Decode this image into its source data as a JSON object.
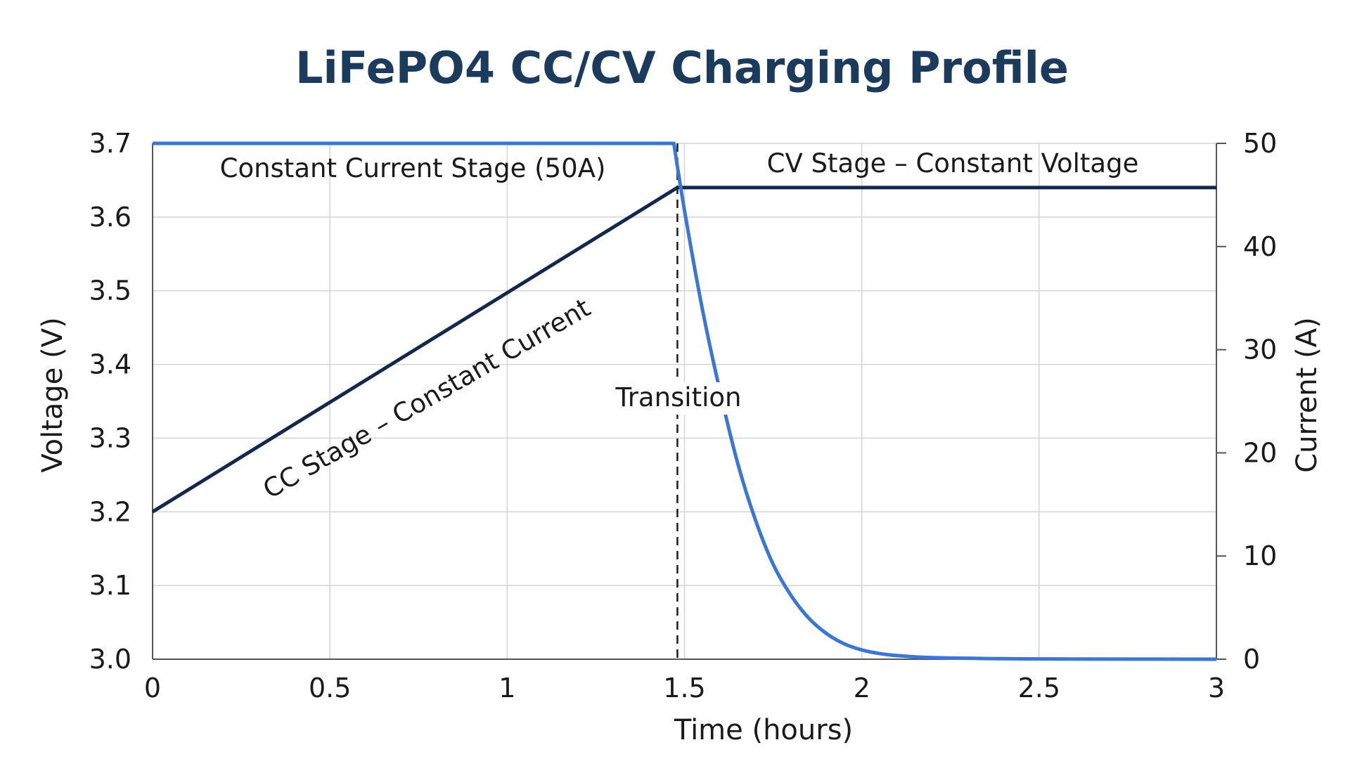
{
  "chart_data": {
    "type": "line",
    "title": "LiFePO4 CC/CV Charging Profile",
    "xlabel": "Time (hours)",
    "ylabel_left": "Voltage (V)",
    "ylabel_right": "Current (A)",
    "xlim": [
      0,
      3
    ],
    "ylim_left": [
      3.0,
      3.7
    ],
    "ylim_right": [
      0,
      50
    ],
    "x_ticks": [
      0,
      0.5,
      1,
      1.5,
      2,
      2.5,
      3
    ],
    "x_tick_labels": [
      "0",
      "0.5",
      "1",
      "1.5",
      "2",
      "2.5",
      "3"
    ],
    "y_left_ticks": [
      3.0,
      3.1,
      3.2,
      3.3,
      3.4,
      3.5,
      3.6,
      3.7
    ],
    "y_left_tick_labels": [
      "3.0",
      "3.1",
      "3.2",
      "3.3",
      "3.4",
      "3.5",
      "3.6",
      "3.7"
    ],
    "y_right_ticks": [
      0,
      10,
      20,
      30,
      40,
      50
    ],
    "y_right_tick_labels": [
      "0",
      "10",
      "20",
      "30",
      "40",
      "50"
    ],
    "grid": true,
    "colors": {
      "voltage": "#14284b",
      "current": "#3b76d4",
      "title": "#1b3a5c",
      "grid": "#d4d4d4"
    },
    "series": [
      {
        "axis": "left",
        "x": [
          0,
          1.48,
          1.5,
          3.0
        ],
        "y": [
          3.2,
          3.64,
          3.64,
          3.64
        ]
      },
      {
        "axis": "right",
        "x": [
          0,
          1.47,
          1.5,
          1.55,
          1.6,
          1.65,
          1.7,
          1.75,
          1.8,
          1.85,
          1.9,
          1.95,
          2.0,
          2.05,
          2.1,
          2.2,
          2.4,
          2.6,
          3.0
        ],
        "y": [
          50,
          50,
          43.5,
          34,
          26,
          19,
          13.5,
          9.2,
          6.2,
          4.0,
          2.5,
          1.5,
          0.9,
          0.55,
          0.35,
          0.15,
          0.05,
          0.02,
          0
        ]
      }
    ],
    "transition_x": 1.48,
    "annotations": [
      {
        "text": "Constant Current Stage (50A)"
      },
      {
        "text": "CV Stage – Constant Voltage"
      },
      {
        "text": "CC Stage – Constant Current"
      },
      {
        "text": "Transition"
      }
    ]
  }
}
